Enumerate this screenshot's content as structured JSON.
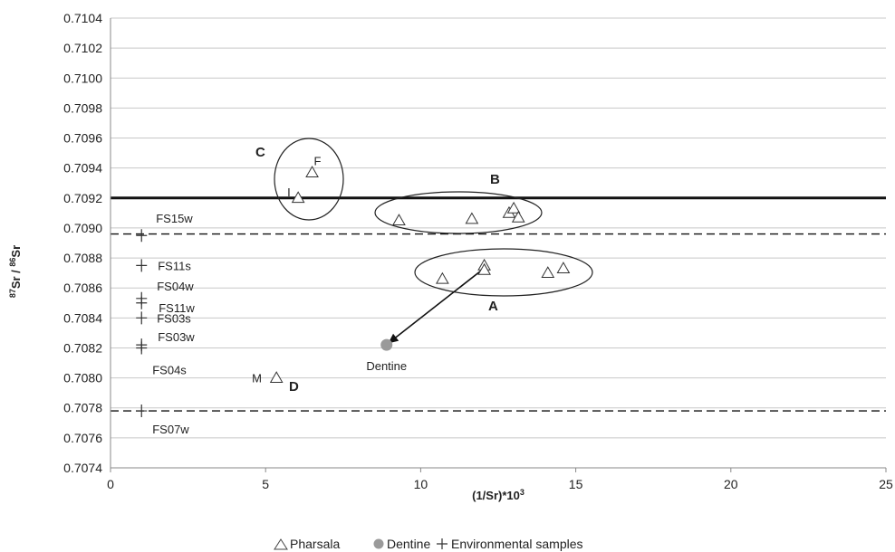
{
  "chart_data": {
    "type": "scatter",
    "xlabel_main": "(1/Sr)*10",
    "xlabel_sup": "3",
    "ylabel_parts": [
      {
        "sup": "87",
        "text": "Sr / "
      },
      {
        "sup": "86",
        "text": "Sr"
      }
    ],
    "xlim": [
      0,
      25
    ],
    "ylim": [
      0.7074,
      0.7104
    ],
    "x_ticks": [
      "0",
      "5",
      "10",
      "15",
      "20",
      "25"
    ],
    "y_ticks": [
      "0.7074",
      "0.7076",
      "0.7078",
      "0.7080",
      "0.7082",
      "0.7084",
      "0.7086",
      "0.7088",
      "0.7090",
      "0.7092",
      "0.7094",
      "0.7096",
      "0.7098",
      "0.7100",
      "0.7102",
      "0.7104"
    ],
    "grid": "horizontal",
    "legend_position": "bottom-center",
    "series": [
      {
        "name": "Pharsala",
        "marker": "triangle",
        "points": [
          {
            "x": 6.5,
            "y": 0.70937,
            "label": "F"
          },
          {
            "x": 6.05,
            "y": 0.7092,
            "label": "I"
          },
          {
            "x": 9.3,
            "y": 0.70905
          },
          {
            "x": 11.65,
            "y": 0.70906
          },
          {
            "x": 12.85,
            "y": 0.7091
          },
          {
            "x": 13.0,
            "y": 0.70913
          },
          {
            "x": 13.15,
            "y": 0.70907
          },
          {
            "x": 10.7,
            "y": 0.70866
          },
          {
            "x": 12.05,
            "y": 0.70875
          },
          {
            "x": 12.05,
            "y": 0.70872
          },
          {
            "x": 14.1,
            "y": 0.7087
          },
          {
            "x": 14.6,
            "y": 0.70873
          },
          {
            "x": 5.35,
            "y": 0.708,
            "label": "M"
          }
        ]
      },
      {
        "name": "Dentine",
        "marker": "circle",
        "color": "#9a9a9a",
        "points": [
          {
            "x": 8.9,
            "y": 0.70822,
            "label": "Dentine"
          }
        ]
      },
      {
        "name": "Environmental samples",
        "marker": "plus",
        "points": [
          {
            "x": 1.0,
            "y": 0.70895,
            "label": "FS15w"
          },
          {
            "x": 1.0,
            "y": 0.70875,
            "label": "FS11s"
          },
          {
            "x": 1.0,
            "y": 0.70853,
            "label": "FS04w"
          },
          {
            "x": 1.0,
            "y": 0.7085,
            "label": "FS11w"
          },
          {
            "x": 1.0,
            "y": 0.7084,
            "label": "FS03s"
          },
          {
            "x": 1.0,
            "y": 0.70822,
            "label": "FS03w"
          },
          {
            "x": 1.0,
            "y": 0.7082,
            "label": "FS04s"
          },
          {
            "x": 1.0,
            "y": 0.70778,
            "label": "FS07w"
          }
        ]
      }
    ],
    "reference_lines": [
      {
        "y": 0.7092,
        "style": "solid"
      },
      {
        "y": 0.70896,
        "style": "dashed"
      },
      {
        "y": 0.70778,
        "style": "dashed"
      }
    ],
    "groups": [
      {
        "label": "A"
      },
      {
        "label": "B"
      },
      {
        "label": "C"
      },
      {
        "label": "D"
      }
    ],
    "arrow": {
      "from": [
        12.1,
        0.70874
      ],
      "to": [
        8.95,
        0.70823
      ]
    }
  }
}
